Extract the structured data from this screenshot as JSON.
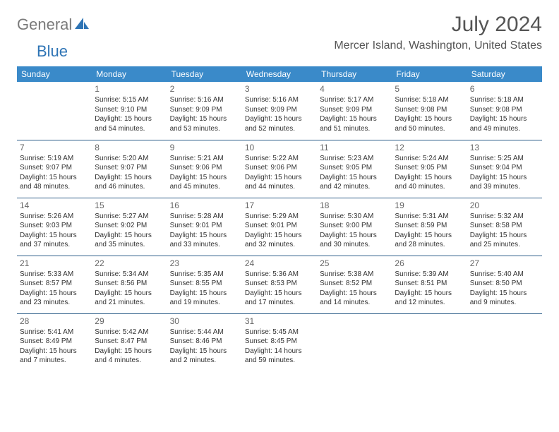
{
  "logo": {
    "general": "General",
    "blue": "Blue"
  },
  "title": "July 2024",
  "location": "Mercer Island, Washington, United States",
  "dayHeaders": [
    "Sunday",
    "Monday",
    "Tuesday",
    "Wednesday",
    "Thursday",
    "Friday",
    "Saturday"
  ],
  "colors": {
    "headerBg": "#3a8ac9",
    "headerText": "#ffffff",
    "rowBorder": "#2e5f8a",
    "titleText": "#555555",
    "bodyText": "#333333",
    "logoGray": "#7a7a7a",
    "logoBlue": "#2e74b5"
  },
  "weeks": [
    [
      null,
      {
        "n": "1",
        "sr": "Sunrise: 5:15 AM",
        "ss": "Sunset: 9:10 PM",
        "d1": "Daylight: 15 hours",
        "d2": "and 54 minutes."
      },
      {
        "n": "2",
        "sr": "Sunrise: 5:16 AM",
        "ss": "Sunset: 9:09 PM",
        "d1": "Daylight: 15 hours",
        "d2": "and 53 minutes."
      },
      {
        "n": "3",
        "sr": "Sunrise: 5:16 AM",
        "ss": "Sunset: 9:09 PM",
        "d1": "Daylight: 15 hours",
        "d2": "and 52 minutes."
      },
      {
        "n": "4",
        "sr": "Sunrise: 5:17 AM",
        "ss": "Sunset: 9:09 PM",
        "d1": "Daylight: 15 hours",
        "d2": "and 51 minutes."
      },
      {
        "n": "5",
        "sr": "Sunrise: 5:18 AM",
        "ss": "Sunset: 9:08 PM",
        "d1": "Daylight: 15 hours",
        "d2": "and 50 minutes."
      },
      {
        "n": "6",
        "sr": "Sunrise: 5:18 AM",
        "ss": "Sunset: 9:08 PM",
        "d1": "Daylight: 15 hours",
        "d2": "and 49 minutes."
      }
    ],
    [
      {
        "n": "7",
        "sr": "Sunrise: 5:19 AM",
        "ss": "Sunset: 9:07 PM",
        "d1": "Daylight: 15 hours",
        "d2": "and 48 minutes."
      },
      {
        "n": "8",
        "sr": "Sunrise: 5:20 AM",
        "ss": "Sunset: 9:07 PM",
        "d1": "Daylight: 15 hours",
        "d2": "and 46 minutes."
      },
      {
        "n": "9",
        "sr": "Sunrise: 5:21 AM",
        "ss": "Sunset: 9:06 PM",
        "d1": "Daylight: 15 hours",
        "d2": "and 45 minutes."
      },
      {
        "n": "10",
        "sr": "Sunrise: 5:22 AM",
        "ss": "Sunset: 9:06 PM",
        "d1": "Daylight: 15 hours",
        "d2": "and 44 minutes."
      },
      {
        "n": "11",
        "sr": "Sunrise: 5:23 AM",
        "ss": "Sunset: 9:05 PM",
        "d1": "Daylight: 15 hours",
        "d2": "and 42 minutes."
      },
      {
        "n": "12",
        "sr": "Sunrise: 5:24 AM",
        "ss": "Sunset: 9:05 PM",
        "d1": "Daylight: 15 hours",
        "d2": "and 40 minutes."
      },
      {
        "n": "13",
        "sr": "Sunrise: 5:25 AM",
        "ss": "Sunset: 9:04 PM",
        "d1": "Daylight: 15 hours",
        "d2": "and 39 minutes."
      }
    ],
    [
      {
        "n": "14",
        "sr": "Sunrise: 5:26 AM",
        "ss": "Sunset: 9:03 PM",
        "d1": "Daylight: 15 hours",
        "d2": "and 37 minutes."
      },
      {
        "n": "15",
        "sr": "Sunrise: 5:27 AM",
        "ss": "Sunset: 9:02 PM",
        "d1": "Daylight: 15 hours",
        "d2": "and 35 minutes."
      },
      {
        "n": "16",
        "sr": "Sunrise: 5:28 AM",
        "ss": "Sunset: 9:01 PM",
        "d1": "Daylight: 15 hours",
        "d2": "and 33 minutes."
      },
      {
        "n": "17",
        "sr": "Sunrise: 5:29 AM",
        "ss": "Sunset: 9:01 PM",
        "d1": "Daylight: 15 hours",
        "d2": "and 32 minutes."
      },
      {
        "n": "18",
        "sr": "Sunrise: 5:30 AM",
        "ss": "Sunset: 9:00 PM",
        "d1": "Daylight: 15 hours",
        "d2": "and 30 minutes."
      },
      {
        "n": "19",
        "sr": "Sunrise: 5:31 AM",
        "ss": "Sunset: 8:59 PM",
        "d1": "Daylight: 15 hours",
        "d2": "and 28 minutes."
      },
      {
        "n": "20",
        "sr": "Sunrise: 5:32 AM",
        "ss": "Sunset: 8:58 PM",
        "d1": "Daylight: 15 hours",
        "d2": "and 25 minutes."
      }
    ],
    [
      {
        "n": "21",
        "sr": "Sunrise: 5:33 AM",
        "ss": "Sunset: 8:57 PM",
        "d1": "Daylight: 15 hours",
        "d2": "and 23 minutes."
      },
      {
        "n": "22",
        "sr": "Sunrise: 5:34 AM",
        "ss": "Sunset: 8:56 PM",
        "d1": "Daylight: 15 hours",
        "d2": "and 21 minutes."
      },
      {
        "n": "23",
        "sr": "Sunrise: 5:35 AM",
        "ss": "Sunset: 8:55 PM",
        "d1": "Daylight: 15 hours",
        "d2": "and 19 minutes."
      },
      {
        "n": "24",
        "sr": "Sunrise: 5:36 AM",
        "ss": "Sunset: 8:53 PM",
        "d1": "Daylight: 15 hours",
        "d2": "and 17 minutes."
      },
      {
        "n": "25",
        "sr": "Sunrise: 5:38 AM",
        "ss": "Sunset: 8:52 PM",
        "d1": "Daylight: 15 hours",
        "d2": "and 14 minutes."
      },
      {
        "n": "26",
        "sr": "Sunrise: 5:39 AM",
        "ss": "Sunset: 8:51 PM",
        "d1": "Daylight: 15 hours",
        "d2": "and 12 minutes."
      },
      {
        "n": "27",
        "sr": "Sunrise: 5:40 AM",
        "ss": "Sunset: 8:50 PM",
        "d1": "Daylight: 15 hours",
        "d2": "and 9 minutes."
      }
    ],
    [
      {
        "n": "28",
        "sr": "Sunrise: 5:41 AM",
        "ss": "Sunset: 8:49 PM",
        "d1": "Daylight: 15 hours",
        "d2": "and 7 minutes."
      },
      {
        "n": "29",
        "sr": "Sunrise: 5:42 AM",
        "ss": "Sunset: 8:47 PM",
        "d1": "Daylight: 15 hours",
        "d2": "and 4 minutes."
      },
      {
        "n": "30",
        "sr": "Sunrise: 5:44 AM",
        "ss": "Sunset: 8:46 PM",
        "d1": "Daylight: 15 hours",
        "d2": "and 2 minutes."
      },
      {
        "n": "31",
        "sr": "Sunrise: 5:45 AM",
        "ss": "Sunset: 8:45 PM",
        "d1": "Daylight: 14 hours",
        "d2": "and 59 minutes."
      },
      null,
      null,
      null
    ]
  ]
}
